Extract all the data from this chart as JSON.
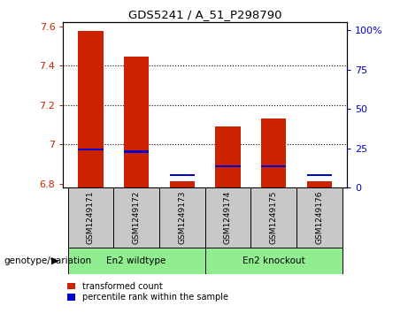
{
  "title": "GDS5241 / A_51_P298790",
  "samples": [
    "GSM1249171",
    "GSM1249172",
    "GSM1249173",
    "GSM1249174",
    "GSM1249175",
    "GSM1249176"
  ],
  "red_values": [
    7.575,
    7.445,
    6.815,
    7.09,
    7.13,
    6.815
  ],
  "blue_values": [
    6.975,
    6.965,
    6.845,
    6.89,
    6.89,
    6.845
  ],
  "ylim_left": [
    6.78,
    7.62
  ],
  "yticks_left": [
    6.8,
    7.0,
    7.2,
    7.4,
    7.6
  ],
  "ytick_labels_left": [
    "6.8",
    "7",
    "7.2",
    "7.4",
    "7.6"
  ],
  "ylim_right": [
    0,
    105
  ],
  "yticks_right": [
    0,
    25,
    50,
    75,
    100
  ],
  "ytick_labels_right": [
    "0",
    "25",
    "50",
    "75",
    "100%"
  ],
  "bar_bottom": 6.78,
  "groups": [
    {
      "label": "En2 wildtype",
      "samples": [
        0,
        1,
        2
      ],
      "color": "#90EE90"
    },
    {
      "label": "En2 knockout",
      "samples": [
        3,
        4,
        5
      ],
      "color": "#90EE90"
    }
  ],
  "red_color": "#CC2200",
  "blue_color": "#0000CC",
  "bar_width": 0.55,
  "grid_color": "black",
  "bg_color": "#C8C8C8",
  "legend_red": "transformed count",
  "legend_blue": "percentile rank within the sample",
  "genotype_label": "genotype/variation",
  "tick_label_color_left": "#CC2200",
  "tick_label_color_right": "#0000CC",
  "blue_bar_height": 0.012
}
